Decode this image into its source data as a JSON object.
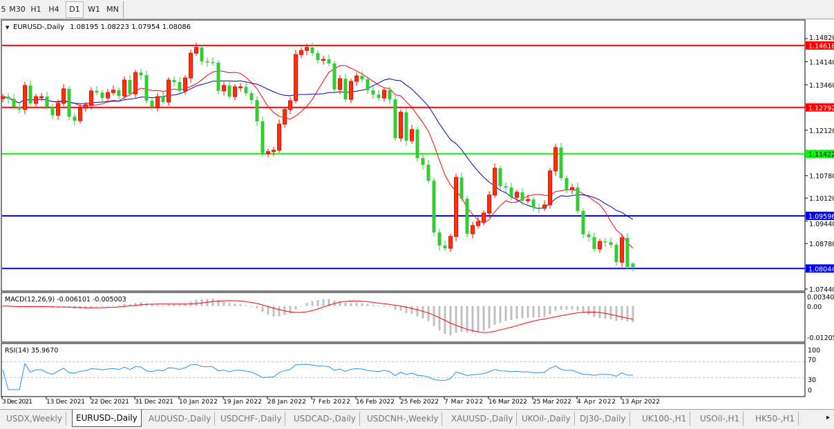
{
  "toolbar": {
    "timeframes": [
      {
        "label": "5",
        "active": false
      },
      {
        "label": "M30",
        "active": false
      },
      {
        "label": "H1",
        "active": false
      },
      {
        "label": "H4",
        "active": false
      },
      {
        "label": "D1",
        "active": true
      },
      {
        "label": "W1",
        "active": false
      },
      {
        "label": "MN",
        "active": false
      }
    ]
  },
  "chart_header": {
    "symbol": "EURUSD-,Daily",
    "ohlc": "1.08195 1.08223 1.07954 1.08086"
  },
  "colors": {
    "bull_candle": "#ff3300",
    "bear_candle": "#32cd32",
    "ma_fast": "#ff0000",
    "ma_slow": "#0000cc",
    "macd_hist": "#c0c0c0",
    "macd_signal": "#ff0000",
    "rsi_line": "#1e90ff"
  },
  "chart_data": {
    "type": "candlestick",
    "first_open": 1.1305,
    "closes": [
      1.1311,
      1.1305,
      1.1281,
      1.1273,
      1.1344,
      1.1291,
      1.1311,
      1.1311,
      1.1281,
      1.1256,
      1.1291,
      1.1334,
      1.1252,
      1.124,
      1.1277,
      1.1287,
      1.1328,
      1.1323,
      1.1307,
      1.1323,
      1.133,
      1.1313,
      1.136,
      1.1319,
      1.1382,
      1.1374,
      1.1299,
      1.1281,
      1.1311,
      1.1295,
      1.136,
      1.1354,
      1.1328,
      1.1366,
      1.1439,
      1.1456,
      1.1415,
      1.1413,
      1.1411,
      1.1328,
      1.1344,
      1.1311,
      1.134,
      1.134,
      1.1321,
      1.1301,
      1.1238,
      1.1143,
      1.1149,
      1.1153,
      1.123,
      1.1273,
      1.1299,
      1.1435,
      1.1447,
      1.1456,
      1.1439,
      1.1419,
      1.1421,
      1.1409,
      1.1332,
      1.1364,
      1.1303,
      1.1356,
      1.1372,
      1.1362,
      1.133,
      1.1317,
      1.1307,
      1.133,
      1.1303,
      1.1189,
      1.1265,
      1.1181,
      1.1214,
      1.113,
      1.111,
      1.1063,
      1.0911,
      1.0872,
      1.0864,
      1.0899,
      1.1073,
      1.101,
      1.0907,
      1.0931,
      1.0943,
      1.0968,
      1.1021,
      1.11,
      1.1047,
      1.1043,
      1.1014,
      1.1029,
      1.1004,
      1.1008,
      1.0984,
      1.0982,
      1.0992,
      1.1092,
      1.1161,
      1.1071,
      1.1037,
      1.1043,
      1.0974,
      1.0905,
      1.0897,
      1.0862,
      1.0884,
      1.0882,
      1.0874,
      1.0823,
      1.0895,
      1.0809,
      1.08086
    ],
    "last_bar": {
      "open": 1.08195,
      "high": 1.08223,
      "low": 1.07954,
      "close": 1.08086
    },
    "price_ticks": [
      "1.14820",
      "1.14140",
      "1.13460",
      "1.12120",
      "1.10780",
      "1.10120",
      "1.09440",
      "1.08780",
      "1.07440"
    ],
    "ylim": [
      1.0725,
      1.1535
    ],
    "date_ticks": [
      "3 Dec 2021",
      "13 Dec 2021",
      "22 Dec 2021",
      "31 Dec 2021",
      "10 Jan 2022",
      "19 Jan 2022",
      "28 Jan 2022",
      "7 Feb 2022",
      "16 Feb 2022",
      "25 Feb 2022",
      "7 Mar 2022",
      "16 Mar 2022",
      "25 Mar 2022",
      "4 Apr 2022",
      "13 Apr 2022"
    ],
    "levels": [
      {
        "price": 1.14618,
        "label": "1.14618",
        "color": "#ff0000"
      },
      {
        "price": 1.12792,
        "label": "1.12792",
        "color": "#ff0000"
      },
      {
        "price": 1.11422,
        "label": "1.11422",
        "color": "#00ff00"
      },
      {
        "price": 1.09596,
        "label": "1.09596",
        "color": "#0000ff"
      },
      {
        "price": 1.08044,
        "label": "1.08044",
        "color": "#0000ff"
      }
    ],
    "macd": {
      "label": "MACD(12,26,9) -0.006101 -0.005003",
      "ticks": [
        "0.003408",
        "0.00",
        "-0.012058"
      ],
      "ylim": [
        -0.012058,
        0.003408
      ]
    },
    "rsi": {
      "label": "RSI(14) 35.9670",
      "ticks": [
        "100",
        "70",
        "30",
        "0"
      ],
      "levels": [
        70,
        30
      ],
      "ylim": [
        0,
        100
      ]
    }
  },
  "tabs": [
    {
      "label": "USDX,Weekly",
      "active": false
    },
    {
      "label": "EURUSD-,Daily",
      "active": true
    },
    {
      "label": "AUDUSD-,Daily",
      "active": false
    },
    {
      "label": "USDCHF-,Daily",
      "active": false
    },
    {
      "label": "USDCAD-,Daily",
      "active": false
    },
    {
      "label": "USDCNH-,Weekly",
      "active": false
    },
    {
      "label": "XAUUSD-,Daily",
      "active": false
    },
    {
      "label": "UKOil-,Daily",
      "active": false
    },
    {
      "label": "DJ30-,Daily",
      "active": false
    },
    {
      "label": "UK100-,H1",
      "active": false
    },
    {
      "label": "USOil-,H1",
      "active": false
    },
    {
      "label": "HK50-,H1",
      "active": false
    }
  ],
  "tabs_scroll_icon": "▸"
}
